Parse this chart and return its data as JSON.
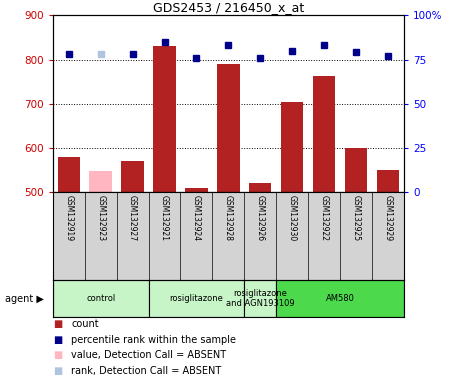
{
  "title": "GDS2453 / 216450_x_at",
  "samples": [
    "GSM132919",
    "GSM132923",
    "GSM132927",
    "GSM132921",
    "GSM132924",
    "GSM132928",
    "GSM132926",
    "GSM132930",
    "GSM132922",
    "GSM132925",
    "GSM132929"
  ],
  "counts": [
    580,
    548,
    570,
    830,
    510,
    790,
    520,
    703,
    762,
    600,
    550
  ],
  "count_absent": [
    false,
    true,
    false,
    false,
    false,
    false,
    false,
    false,
    false,
    false,
    false
  ],
  "percentile_ranks": [
    78,
    78,
    78,
    85,
    76,
    83,
    76,
    80,
    83,
    79,
    77
  ],
  "rank_absent": [
    false,
    true,
    false,
    false,
    false,
    false,
    false,
    false,
    false,
    false,
    false
  ],
  "ylim_left": [
    500,
    900
  ],
  "ylim_right": [
    0,
    100
  ],
  "yticks_left": [
    500,
    600,
    700,
    800,
    900
  ],
  "yticks_right": [
    0,
    25,
    50,
    75,
    100
  ],
  "bar_color_present": "#b22222",
  "bar_color_absent": "#ffb6c1",
  "dot_color_present": "#00008b",
  "dot_color_absent": "#b0c4de",
  "agent_groups": [
    {
      "label": "control",
      "start": 0,
      "end": 3
    },
    {
      "label": "rosiglitazone",
      "start": 3,
      "end": 6
    },
    {
      "label": "rosiglitazone\nand AGN193109",
      "start": 6,
      "end": 7
    },
    {
      "label": "AM580",
      "start": 7,
      "end": 11
    }
  ],
  "group_colors": [
    "#c8f5c8",
    "#c8f5c8",
    "#c8f5c8",
    "#4cd94c"
  ],
  "legend_labels": [
    "count",
    "percentile rank within the sample",
    "value, Detection Call = ABSENT",
    "rank, Detection Call = ABSENT"
  ],
  "legend_colors": [
    "#b22222",
    "#00008b",
    "#ffb6c1",
    "#b0c4de"
  ]
}
